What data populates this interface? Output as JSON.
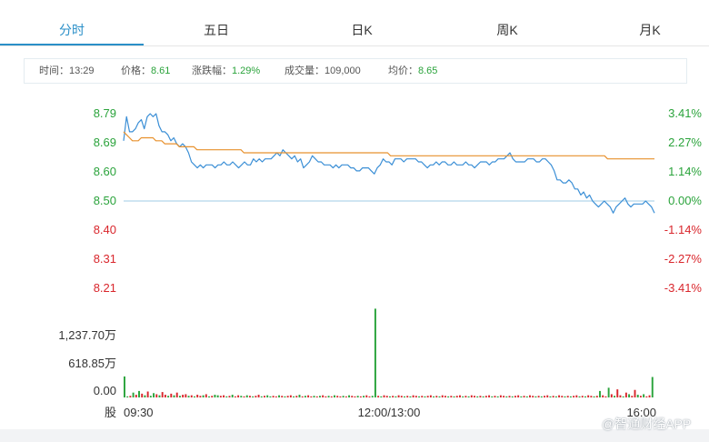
{
  "tabs": [
    {
      "label": "分时",
      "active": true
    },
    {
      "label": "五日",
      "active": false
    },
    {
      "label": "日K",
      "active": false
    },
    {
      "label": "周K",
      "active": false
    },
    {
      "label": "月K",
      "active": false
    }
  ],
  "info": {
    "time_label": "时间：",
    "time_value": "13:29",
    "price_label": "价格：",
    "price_value": "8.61",
    "change_label": "涨跌幅：",
    "change_value": "1.29%",
    "volume_label": "成交量：",
    "volume_value": "109,000",
    "avg_label": "均价：",
    "avg_value": "8.65"
  },
  "watermark": "@智通财经APP",
  "colors": {
    "up": "#2aa33b",
    "down": "#d9262c",
    "price_line": "#3b8fd6",
    "avg_line": "#e8912d",
    "accent": "#2a8fc8"
  },
  "chart_data": {
    "type": "line",
    "x_ticks": [
      "09:30",
      "12:00/13:00",
      "16:00"
    ],
    "y_left_ticks": [
      "8.79",
      "8.69",
      "8.60",
      "8.50",
      "8.40",
      "8.31",
      "8.21"
    ],
    "y_right_ticks": [
      "3.41%",
      "2.27%",
      "1.14%",
      "0.00%",
      "-1.14%",
      "-2.27%",
      "-3.41%"
    ],
    "ylim": [
      8.21,
      8.79
    ],
    "base_price": 8.5,
    "series": [
      {
        "key": "price",
        "values": [
          8.7,
          8.78,
          8.73,
          8.73,
          8.74,
          8.76,
          8.77,
          8.74,
          8.78,
          8.79,
          8.78,
          8.79,
          8.75,
          8.73,
          8.73,
          8.72,
          8.7,
          8.71,
          8.69,
          8.68,
          8.69,
          8.68,
          8.66,
          8.63,
          8.62,
          8.61,
          8.62,
          8.61,
          8.62,
          8.62,
          8.62,
          8.61,
          8.62,
          8.62,
          8.63,
          8.62,
          8.62,
          8.63,
          8.62,
          8.61,
          8.62,
          8.63,
          8.62,
          8.62,
          8.64,
          8.63,
          8.64,
          8.63,
          8.64,
          8.64,
          8.64,
          8.65,
          8.66,
          8.65,
          8.67,
          8.66,
          8.65,
          8.64,
          8.65,
          8.63,
          8.64,
          8.61,
          8.62,
          8.63,
          8.65,
          8.64,
          8.63,
          8.63,
          8.62,
          8.62,
          8.62,
          8.61,
          8.62,
          8.61,
          8.62,
          8.62,
          8.62,
          8.61,
          8.61,
          8.6,
          8.6,
          8.61,
          8.61,
          8.61,
          8.6,
          8.59,
          8.61,
          8.62,
          8.64,
          8.63,
          8.63,
          8.62,
          8.64,
          8.64,
          8.64,
          8.63,
          8.64,
          8.64,
          8.64,
          8.64,
          8.63,
          8.63,
          8.62,
          8.61,
          8.62,
          8.62,
          8.63,
          8.62,
          8.63,
          8.63,
          8.62,
          8.62,
          8.63,
          8.62,
          8.62,
          8.62,
          8.63,
          8.62,
          8.62,
          8.61,
          8.62,
          8.63,
          8.63,
          8.63,
          8.62,
          8.63,
          8.63,
          8.64,
          8.64,
          8.64,
          8.65,
          8.66,
          8.64,
          8.63,
          8.63,
          8.63,
          8.63,
          8.64,
          8.64,
          8.64,
          8.63,
          8.63,
          8.64,
          8.64,
          8.63,
          8.62,
          8.6,
          8.57,
          8.57,
          8.56,
          8.56,
          8.57,
          8.56,
          8.54,
          8.54,
          8.52,
          8.53,
          8.51,
          8.52,
          8.5,
          8.49,
          8.48,
          8.49,
          8.5,
          8.49,
          8.48,
          8.46,
          8.48,
          8.49,
          8.5,
          8.51,
          8.49,
          8.48,
          8.49,
          8.49,
          8.49,
          8.49,
          8.5,
          8.49,
          8.48,
          8.46
        ]
      },
      {
        "key": "average",
        "values": [
          8.73,
          8.72,
          8.71,
          8.7,
          8.7,
          8.7,
          8.71,
          8.71,
          8.71,
          8.71,
          8.71,
          8.7,
          8.7,
          8.7,
          8.69,
          8.69,
          8.69,
          8.69,
          8.69,
          8.68,
          8.68,
          8.68,
          8.68,
          8.68,
          8.68,
          8.67,
          8.67,
          8.67,
          8.67,
          8.67,
          8.67,
          8.67,
          8.67,
          8.67,
          8.67,
          8.67,
          8.67,
          8.67,
          8.67,
          8.67,
          8.67,
          8.66,
          8.66,
          8.66,
          8.66,
          8.66,
          8.66,
          8.66,
          8.66,
          8.66,
          8.66,
          8.66,
          8.66,
          8.66,
          8.66,
          8.66,
          8.66,
          8.66,
          8.66,
          8.66,
          8.66,
          8.66,
          8.66,
          8.66,
          8.66,
          8.66,
          8.66,
          8.66,
          8.66,
          8.66,
          8.66,
          8.66,
          8.66,
          8.66,
          8.66,
          8.66,
          8.66,
          8.66,
          8.66,
          8.66,
          8.66,
          8.66,
          8.66,
          8.66,
          8.66,
          8.66,
          8.66,
          8.66,
          8.66,
          8.66,
          8.66,
          8.65,
          8.65,
          8.65,
          8.65,
          8.65,
          8.65,
          8.65,
          8.65,
          8.65,
          8.65,
          8.65,
          8.65,
          8.65,
          8.65,
          8.65,
          8.65,
          8.65,
          8.65,
          8.65,
          8.65,
          8.65,
          8.65,
          8.65,
          8.65,
          8.65,
          8.65,
          8.65,
          8.65,
          8.65,
          8.65,
          8.65,
          8.65,
          8.65,
          8.65,
          8.65,
          8.65,
          8.65,
          8.65,
          8.65,
          8.65,
          8.65,
          8.65,
          8.65,
          8.65,
          8.65,
          8.65,
          8.65,
          8.65,
          8.65,
          8.65,
          8.65,
          8.65,
          8.65,
          8.65,
          8.65,
          8.65,
          8.65,
          8.65,
          8.65,
          8.65,
          8.65,
          8.65,
          8.65,
          8.65,
          8.65,
          8.65,
          8.65,
          8.65,
          8.65,
          8.65,
          8.65,
          8.65,
          8.65,
          8.65,
          8.64,
          8.64,
          8.64,
          8.64,
          8.64,
          8.64,
          8.64,
          8.64,
          8.64,
          8.64,
          8.64,
          8.64,
          8.64,
          8.64,
          8.64,
          8.64,
          8.64
        ]
      }
    ],
    "volume": {
      "y_ticks": [
        "1,237.70万",
        "618.85万",
        "0.00"
      ],
      "unit_label": "股",
      "ylim": [
        0,
        1640
      ],
      "values_wan": [
        390,
        20,
        30,
        90,
        50,
        120,
        70,
        40,
        110,
        30,
        80,
        60,
        40,
        100,
        50,
        30,
        70,
        40,
        90,
        30,
        50,
        60,
        30,
        40,
        20,
        50,
        30,
        40,
        60,
        20,
        30,
        50,
        40,
        30,
        40,
        20,
        30,
        50,
        20,
        40,
        30,
        20,
        40,
        30,
        20,
        30,
        50,
        20,
        30,
        40,
        20,
        30,
        20,
        40,
        30,
        20,
        30,
        40,
        20,
        30,
        50,
        20,
        30,
        40,
        20,
        30,
        20,
        30,
        40,
        20,
        30,
        20,
        40,
        30,
        20,
        30,
        20,
        40,
        30,
        20,
        30,
        20,
        30,
        40,
        20,
        30,
        1650,
        30,
        20,
        40,
        30,
        20,
        30,
        20,
        40,
        30,
        20,
        30,
        20,
        40,
        30,
        20,
        30,
        20,
        30,
        40,
        20,
        30,
        20,
        40,
        30,
        20,
        30,
        20,
        30,
        40,
        20,
        30,
        20,
        40,
        30,
        20,
        30,
        20,
        30,
        40,
        20,
        30,
        20,
        40,
        30,
        20,
        30,
        20,
        30,
        40,
        20,
        30,
        20,
        40,
        30,
        20,
        30,
        20,
        30,
        40,
        20,
        30,
        20,
        40,
        30,
        20,
        30,
        20,
        30,
        40,
        20,
        30,
        20,
        40,
        30,
        20,
        30,
        120,
        40,
        20,
        180,
        60,
        30,
        150,
        40,
        20,
        90,
        60,
        30,
        140,
        50,
        30,
        60,
        20,
        40,
        380
      ],
      "up": [
        1,
        1,
        0,
        1,
        0,
        1,
        0,
        1,
        0,
        1,
        1,
        0,
        1,
        0,
        0,
        1,
        0,
        1,
        0,
        1,
        0,
        0,
        1,
        0,
        1,
        0,
        0,
        1,
        0,
        1,
        0,
        1,
        1,
        0,
        0,
        1,
        0,
        1,
        0,
        0,
        1,
        0,
        1,
        0,
        1,
        0,
        0,
        1,
        0,
        1,
        1,
        0,
        0,
        1,
        0,
        1,
        0,
        0,
        1,
        0,
        1,
        0,
        1,
        0,
        0,
        1,
        0,
        1,
        0,
        0,
        1,
        0,
        1,
        0,
        0,
        1,
        0,
        1,
        0,
        0,
        1,
        0,
        1,
        0,
        0,
        1,
        1,
        0,
        1,
        0,
        0,
        1,
        0,
        1,
        0,
        0,
        1,
        0,
        1,
        0,
        0,
        1,
        0,
        1,
        0,
        0,
        1,
        0,
        1,
        0,
        0,
        1,
        0,
        1,
        0,
        0,
        1,
        0,
        1,
        0,
        0,
        1,
        0,
        1,
        0,
        0,
        1,
        0,
        1,
        0,
        0,
        1,
        0,
        1,
        0,
        0,
        1,
        0,
        1,
        0,
        0,
        1,
        0,
        1,
        0,
        0,
        1,
        0,
        1,
        0,
        0,
        1,
        0,
        1,
        0,
        0,
        1,
        0,
        1,
        0,
        0,
        1,
        0,
        1,
        0,
        0,
        1,
        0,
        1,
        0,
        0,
        1,
        0,
        1,
        0,
        0,
        1,
        0,
        1,
        0,
        0,
        1,
        0,
        0,
        0
      ]
    }
  }
}
